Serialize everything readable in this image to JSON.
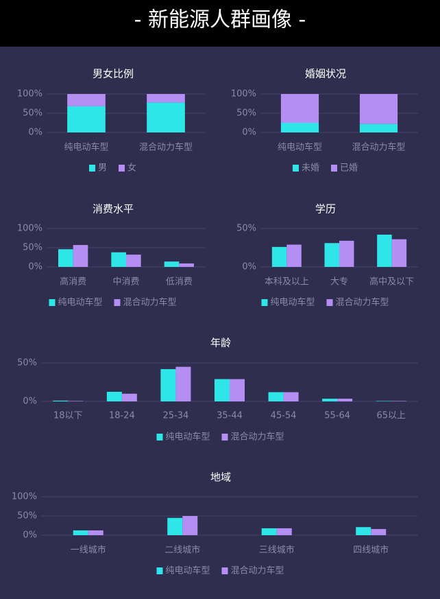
{
  "title": "- 新能源人群画像 -",
  "chart_data": [
    {
      "type": "bar",
      "stacked": true,
      "title": "男女比例",
      "categories": [
        "纯电动车型",
        "混合动力车型"
      ],
      "series": [
        {
          "name": "男",
          "color": "#2ee6e8",
          "values": [
            68,
            78
          ]
        },
        {
          "name": "女",
          "color": "#b48ef2",
          "values": [
            32,
            22
          ]
        }
      ],
      "ylim": [
        0,
        100
      ],
      "yticks": [
        {
          "value": 0,
          "label": "0%"
        },
        {
          "value": 50,
          "label": "50%"
        },
        {
          "value": 100,
          "label": "100%"
        }
      ],
      "grid": true
    },
    {
      "type": "bar",
      "stacked": true,
      "title": "婚姻状况",
      "categories": [
        "纯电动车型",
        "混合动力车型"
      ],
      "series": [
        {
          "name": "未婚",
          "color": "#2ee6e8",
          "values": [
            25,
            22
          ]
        },
        {
          "name": "已婚",
          "color": "#b48ef2",
          "values": [
            75,
            78
          ]
        }
      ],
      "ylim": [
        0,
        100
      ],
      "yticks": [
        {
          "value": 0,
          "label": "0%"
        },
        {
          "value": 50,
          "label": "50%"
        },
        {
          "value": 100,
          "label": "100%"
        }
      ],
      "grid": true
    },
    {
      "type": "bar",
      "stacked": false,
      "title": "消费水平",
      "categories": [
        "高消费",
        "中消费",
        "低消费"
      ],
      "series": [
        {
          "name": "纯电动车型",
          "color": "#2ee6e8",
          "values": [
            46,
            38,
            14
          ]
        },
        {
          "name": "混合动力车型",
          "color": "#b48ef2",
          "values": [
            57,
            32,
            9
          ]
        }
      ],
      "ylim": [
        0,
        100
      ],
      "yticks": [
        {
          "value": 0,
          "label": "0%"
        },
        {
          "value": 50,
          "label": "50%"
        },
        {
          "value": 100,
          "label": "100%"
        }
      ],
      "grid": true
    },
    {
      "type": "bar",
      "stacked": false,
      "title": "学历",
      "categories": [
        "本科及以上",
        "大专",
        "高中及以下"
      ],
      "series": [
        {
          "name": "纯电动车型",
          "color": "#2ee6e8",
          "values": [
            26,
            31,
            42
          ]
        },
        {
          "name": "混合动力车型",
          "color": "#b48ef2",
          "values": [
            29,
            34,
            36
          ]
        }
      ],
      "ylim": [
        0,
        50
      ],
      "yticks": [
        {
          "value": 0,
          "label": "0%"
        },
        {
          "value": 50,
          "label": "50%"
        }
      ],
      "grid": true
    },
    {
      "type": "bar",
      "stacked": false,
      "title": "年龄",
      "categories": [
        "18以下",
        "18-24",
        "25-34",
        "35-44",
        "45-54",
        "55-64",
        "65以上"
      ],
      "series": [
        {
          "name": "纯电动车型",
          "color": "#2ee6e8",
          "values": [
            1,
            12.5,
            42,
            29,
            12,
            3.5,
            0.5
          ]
        },
        {
          "name": "混合动力车型",
          "color": "#b48ef2",
          "values": [
            0.5,
            10,
            45,
            29,
            12,
            3.5,
            0.5
          ]
        }
      ],
      "ylim": [
        0,
        50
      ],
      "yticks": [
        {
          "value": 0,
          "label": "0%"
        },
        {
          "value": 50,
          "label": "50%"
        }
      ],
      "grid": true
    },
    {
      "type": "bar",
      "stacked": false,
      "title": "地域",
      "categories": [
        "一线城市",
        "二线城市",
        "三线城市",
        "四线城市"
      ],
      "series": [
        {
          "name": "纯电动车型",
          "color": "#2ee6e8",
          "values": [
            12.5,
            45,
            18,
            21
          ]
        },
        {
          "name": "混合动力车型",
          "color": "#b48ef2",
          "values": [
            12.5,
            50,
            18,
            16
          ]
        }
      ],
      "ylim": [
        0,
        100
      ],
      "yticks": [
        {
          "value": 0,
          "label": "0%"
        },
        {
          "value": 50,
          "label": "50%"
        },
        {
          "value": 100,
          "label": "100%"
        }
      ],
      "grid": true
    }
  ]
}
